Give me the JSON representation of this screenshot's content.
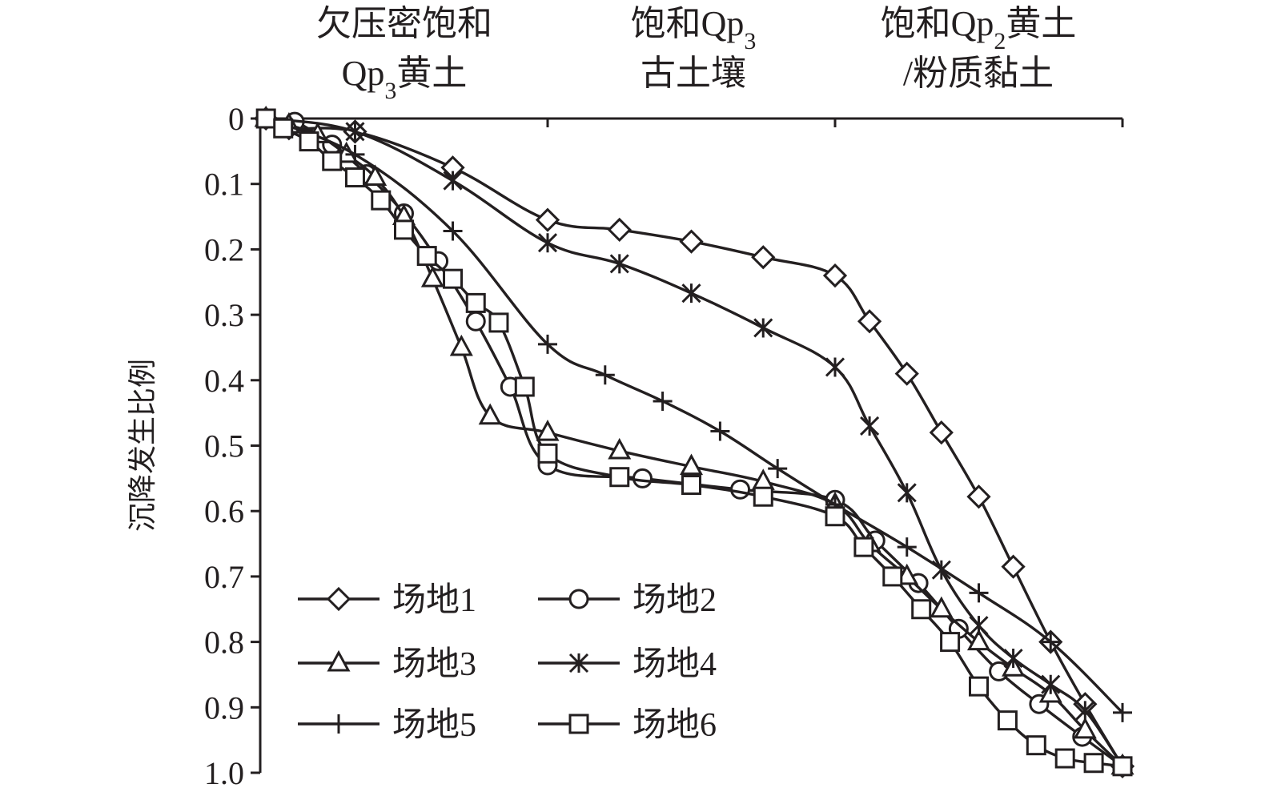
{
  "chart_data": {
    "type": "line",
    "ylabel": "沉降发生比例",
    "ylim": [
      0,
      1.0
    ],
    "y_reversed": true,
    "xlim": [
      0,
      3
    ],
    "y_ticks": [
      "0",
      "0.1",
      "0.2",
      "0.3",
      "0.4",
      "0.5",
      "0.6",
      "0.7",
      "0.8",
      "0.9",
      "1.0"
    ],
    "x_axis_position": "top",
    "layers": [
      {
        "line1": "欠压密饱和",
        "line2_main": "Qp",
        "line2_sub": "3",
        "line2_rest": "黄土"
      },
      {
        "line1_main": "饱和Qp",
        "line1_sub": "3",
        "line2": "古土壤"
      },
      {
        "line1_main": "饱和Qp",
        "line1_sub": "2",
        "line1_rest": "黄土",
        "line2": "/粉质黏土"
      }
    ],
    "legend": {
      "position": "bottom-left",
      "columns": 2
    },
    "series": [
      {
        "name": "场地1",
        "marker": "diamond",
        "points": [
          [
            0.02,
            0
          ],
          [
            0.1,
            0.015
          ],
          [
            0.33,
            0.02
          ],
          [
            0.67,
            0.075
          ],
          [
            1.0,
            0.155
          ],
          [
            1.25,
            0.17
          ],
          [
            1.5,
            0.188
          ],
          [
            1.75,
            0.212
          ],
          [
            2.0,
            0.24
          ],
          [
            2.12,
            0.31
          ],
          [
            2.25,
            0.39
          ],
          [
            2.37,
            0.48
          ],
          [
            2.5,
            0.578
          ],
          [
            2.62,
            0.685
          ],
          [
            2.75,
            0.8
          ],
          [
            2.87,
            0.895
          ],
          [
            3.0,
            0.99
          ]
        ]
      },
      {
        "name": "场地2",
        "marker": "circle",
        "points": [
          [
            0.02,
            0
          ],
          [
            0.12,
            0.005
          ],
          [
            0.25,
            0.04
          ],
          [
            0.37,
            0.085
          ],
          [
            0.5,
            0.145
          ],
          [
            0.62,
            0.218
          ],
          [
            0.75,
            0.31
          ],
          [
            0.87,
            0.41
          ],
          [
            1.0,
            0.53
          ],
          [
            1.33,
            0.55
          ],
          [
            1.67,
            0.567
          ],
          [
            2.0,
            0.583
          ],
          [
            2.14,
            0.645
          ],
          [
            2.29,
            0.71
          ],
          [
            2.43,
            0.78
          ],
          [
            2.57,
            0.845
          ],
          [
            2.71,
            0.895
          ],
          [
            2.86,
            0.945
          ],
          [
            3.0,
            0.99
          ]
        ]
      },
      {
        "name": "场地3",
        "marker": "triangle",
        "points": [
          [
            0.02,
            0
          ],
          [
            0.1,
            0.01
          ],
          [
            0.2,
            0.025
          ],
          [
            0.3,
            0.055
          ],
          [
            0.4,
            0.09
          ],
          [
            0.5,
            0.15
          ],
          [
            0.6,
            0.245
          ],
          [
            0.7,
            0.35
          ],
          [
            0.8,
            0.455
          ],
          [
            1.0,
            0.48
          ],
          [
            1.25,
            0.508
          ],
          [
            1.5,
            0.532
          ],
          [
            1.75,
            0.555
          ],
          [
            2.0,
            0.59
          ],
          [
            2.12,
            0.65
          ],
          [
            2.25,
            0.7
          ],
          [
            2.37,
            0.75
          ],
          [
            2.5,
            0.8
          ],
          [
            2.62,
            0.84
          ],
          [
            2.75,
            0.88
          ],
          [
            2.87,
            0.935
          ],
          [
            3.0,
            0.99
          ]
        ]
      },
      {
        "name": "场地4",
        "marker": "asterisk",
        "points": [
          [
            0.02,
            0
          ],
          [
            0.33,
            0.02
          ],
          [
            0.67,
            0.095
          ],
          [
            1.0,
            0.19
          ],
          [
            1.25,
            0.222
          ],
          [
            1.5,
            0.267
          ],
          [
            1.75,
            0.32
          ],
          [
            2.0,
            0.38
          ],
          [
            2.12,
            0.47
          ],
          [
            2.25,
            0.572
          ],
          [
            2.37,
            0.69
          ],
          [
            2.5,
            0.775
          ],
          [
            2.62,
            0.825
          ],
          [
            2.75,
            0.865
          ],
          [
            2.87,
            0.905
          ],
          [
            3.0,
            0.99
          ]
        ]
      },
      {
        "name": "场地5",
        "marker": "plus",
        "points": [
          [
            0.02,
            0
          ],
          [
            0.33,
            0.055
          ],
          [
            0.67,
            0.172
          ],
          [
            1.0,
            0.345
          ],
          [
            1.2,
            0.392
          ],
          [
            1.4,
            0.432
          ],
          [
            1.6,
            0.478
          ],
          [
            1.8,
            0.535
          ],
          [
            2.0,
            0.59
          ],
          [
            2.25,
            0.655
          ],
          [
            2.5,
            0.725
          ],
          [
            2.75,
            0.8
          ],
          [
            3.0,
            0.908
          ]
        ]
      },
      {
        "name": "场地6",
        "marker": "square",
        "points": [
          [
            0.02,
            0
          ],
          [
            0.08,
            0.015
          ],
          [
            0.17,
            0.035
          ],
          [
            0.25,
            0.065
          ],
          [
            0.33,
            0.09
          ],
          [
            0.42,
            0.125
          ],
          [
            0.5,
            0.17
          ],
          [
            0.58,
            0.21
          ],
          [
            0.67,
            0.245
          ],
          [
            0.75,
            0.282
          ],
          [
            0.83,
            0.312
          ],
          [
            0.92,
            0.41
          ],
          [
            1.0,
            0.512
          ],
          [
            1.25,
            0.548
          ],
          [
            1.5,
            0.56
          ],
          [
            1.75,
            0.578
          ],
          [
            2.0,
            0.608
          ],
          [
            2.1,
            0.655
          ],
          [
            2.2,
            0.7
          ],
          [
            2.3,
            0.75
          ],
          [
            2.4,
            0.8
          ],
          [
            2.5,
            0.868
          ],
          [
            2.6,
            0.92
          ],
          [
            2.7,
            0.958
          ],
          [
            2.8,
            0.978
          ],
          [
            2.9,
            0.985
          ],
          [
            3.0,
            0.99
          ]
        ]
      }
    ]
  }
}
